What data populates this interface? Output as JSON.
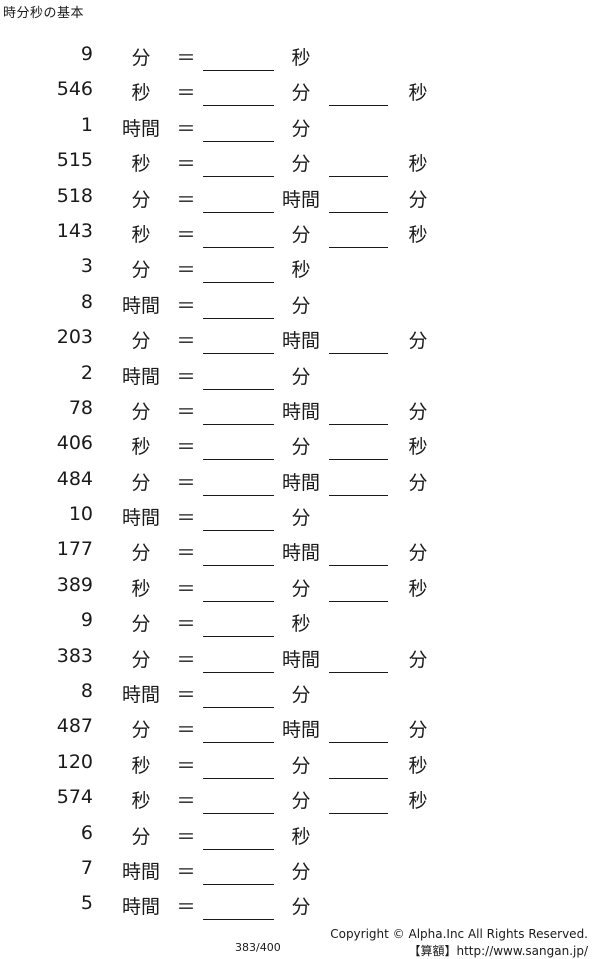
{
  "title": "時分秒の基本",
  "eq": "＝",
  "rows": [
    {
      "n": "9",
      "u1": "分",
      "u2": "秒",
      "u3": ""
    },
    {
      "n": "546",
      "u1": "秒",
      "u2": "分",
      "u3": "秒"
    },
    {
      "n": "1",
      "u1": "時間",
      "u2": "分",
      "u3": ""
    },
    {
      "n": "515",
      "u1": "秒",
      "u2": "分",
      "u3": "秒"
    },
    {
      "n": "518",
      "u1": "分",
      "u2": "時間",
      "u3": "分"
    },
    {
      "n": "143",
      "u1": "秒",
      "u2": "分",
      "u3": "秒"
    },
    {
      "n": "3",
      "u1": "分",
      "u2": "秒",
      "u3": ""
    },
    {
      "n": "8",
      "u1": "時間",
      "u2": "分",
      "u3": ""
    },
    {
      "n": "203",
      "u1": "分",
      "u2": "時間",
      "u3": "分"
    },
    {
      "n": "2",
      "u1": "時間",
      "u2": "分",
      "u3": ""
    },
    {
      "n": "78",
      "u1": "分",
      "u2": "時間",
      "u3": "分"
    },
    {
      "n": "406",
      "u1": "秒",
      "u2": "分",
      "u3": "秒"
    },
    {
      "n": "484",
      "u1": "分",
      "u2": "時間",
      "u3": "分"
    },
    {
      "n": "10",
      "u1": "時間",
      "u2": "分",
      "u3": ""
    },
    {
      "n": "177",
      "u1": "分",
      "u2": "時間",
      "u3": "分"
    },
    {
      "n": "389",
      "u1": "秒",
      "u2": "分",
      "u3": "秒"
    },
    {
      "n": "9",
      "u1": "分",
      "u2": "秒",
      "u3": ""
    },
    {
      "n": "383",
      "u1": "分",
      "u2": "時間",
      "u3": "分"
    },
    {
      "n": "8",
      "u1": "時間",
      "u2": "分",
      "u3": ""
    },
    {
      "n": "487",
      "u1": "分",
      "u2": "時間",
      "u3": "分"
    },
    {
      "n": "120",
      "u1": "秒",
      "u2": "分",
      "u3": "秒"
    },
    {
      "n": "574",
      "u1": "秒",
      "u2": "分",
      "u3": "秒"
    },
    {
      "n": "6",
      "u1": "分",
      "u2": "秒",
      "u3": ""
    },
    {
      "n": "7",
      "u1": "時間",
      "u2": "分",
      "u3": ""
    },
    {
      "n": "5",
      "u1": "時間",
      "u2": "分",
      "u3": ""
    }
  ],
  "footer": {
    "copyright": "Copyright © Alpha.Inc All Rights Reserved.",
    "site": "【算額】http://www.sangan.jp/",
    "page": "383/400"
  }
}
